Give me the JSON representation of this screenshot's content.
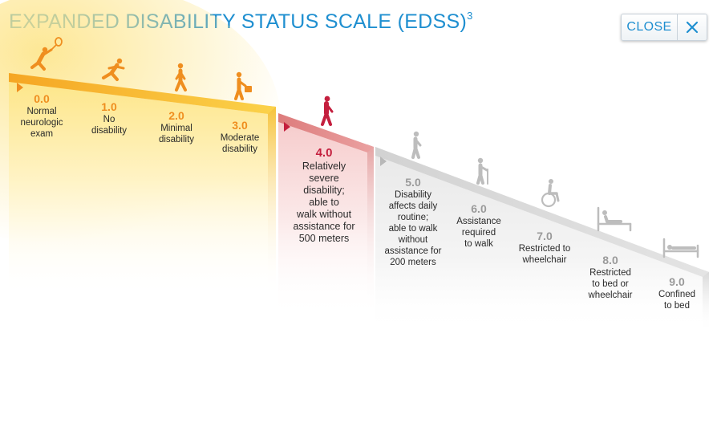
{
  "header": {
    "title": "EXPANDED DISABILITY STATUS SCALE (EDSS)",
    "title_sup": "3",
    "close_label": "CLOSE",
    "close_icon": "close-x-icon"
  },
  "colors": {
    "title": "#1f8fd0",
    "mild_accent": "#ef8e1f",
    "mild_ramp": "#f8c32c",
    "moderate_accent": "#c41f3e",
    "moderate_ramp": "#e28a8a",
    "severe_label": "#9a9a9a",
    "severe_ramp": "#d8d8d8"
  },
  "levels": [
    {
      "score": "0.0",
      "lines": [
        "Normal",
        "neurologic",
        "exam"
      ],
      "icon": "tennis-player-icon",
      "group": 1
    },
    {
      "score": "1.0",
      "lines": [
        "No",
        "disability"
      ],
      "icon": "runner-icon",
      "group": 1
    },
    {
      "score": "2.0",
      "lines": [
        "Minimal",
        "disability"
      ],
      "icon": "walker-icon",
      "group": 1
    },
    {
      "score": "3.0",
      "lines": [
        "Moderate",
        "disability"
      ],
      "icon": "person-with-bag-icon",
      "group": 1
    },
    {
      "score": "4.0",
      "lines": [
        "Relatively",
        "severe",
        "disability;",
        "able to",
        "walk without",
        "assistance for",
        "500 meters"
      ],
      "icon": "walking-person-icon",
      "group": 2
    },
    {
      "score": "5.0",
      "lines": [
        "Disability",
        "affects daily",
        "routine;",
        "able to walk",
        "without",
        "assistance for",
        "200 meters"
      ],
      "icon": "slow-walker-icon",
      "group": 3
    },
    {
      "score": "6.0",
      "lines": [
        "Assistance",
        "required",
        "to walk"
      ],
      "icon": "cane-walker-icon",
      "group": 3
    },
    {
      "score": "7.0",
      "lines": [
        "Restricted to",
        "wheelchair"
      ],
      "icon": "wheelchair-icon",
      "group": 3
    },
    {
      "score": "8.0",
      "lines": [
        "Restricted",
        "to bed or",
        "wheelchair"
      ],
      "icon": "person-sitting-in-bed-icon",
      "group": 3
    },
    {
      "score": "9.0",
      "lines": [
        "Confined",
        "to bed"
      ],
      "icon": "bed-icon",
      "group": 3
    }
  ]
}
